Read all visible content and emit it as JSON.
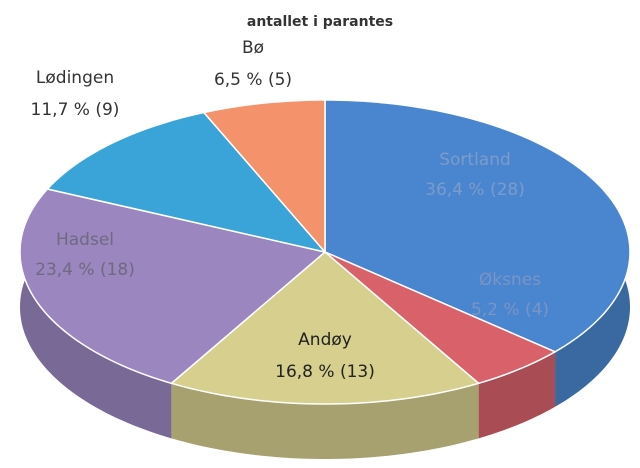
{
  "chart_data": {
    "type": "pie",
    "subtitle": "antallet i parantes",
    "categories": [
      "Sortland",
      "Øksnes",
      "Andøy",
      "Hadsel",
      "Lødingen",
      "Bø"
    ],
    "values": [
      36.4,
      5.2,
      16.8,
      23.4,
      11.7,
      6.5
    ],
    "value_labels": [
      "36,4 % (28)",
      "5,2 % (4)",
      "16,8 % (13)",
      "23,4 % (18)",
      "11,7 % (9)",
      "6,5 % (5)"
    ],
    "colors": [
      "#4a86d0",
      "#d9626a",
      "#d6cf8e",
      "#9b86c0",
      "#3aa4d8",
      "#f4926c"
    ]
  }
}
